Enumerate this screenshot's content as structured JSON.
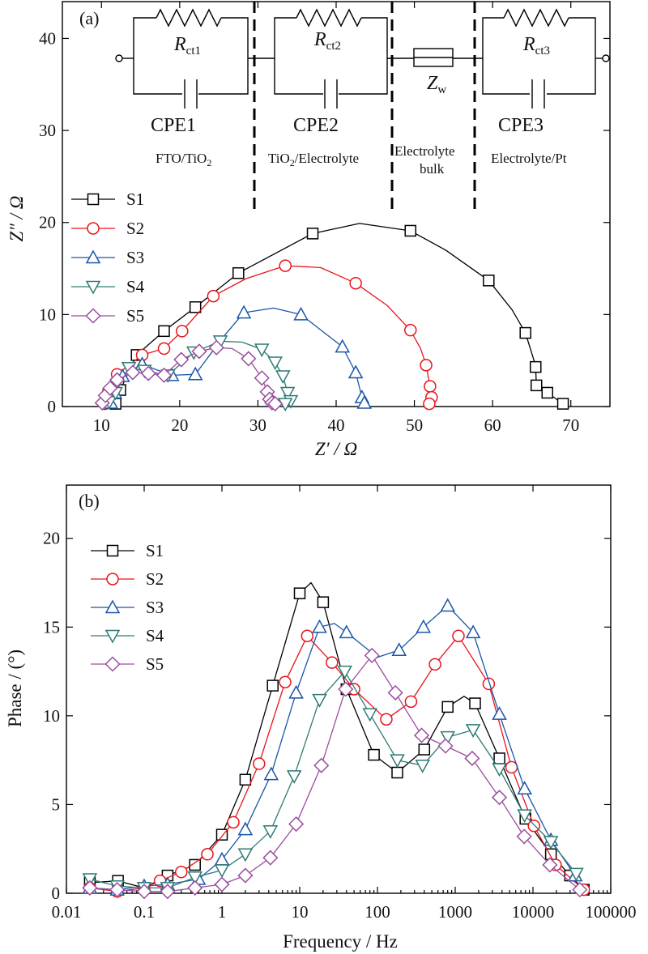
{
  "chart_data": [
    {
      "panel": "(a)",
      "type": "scatter",
      "xlabel": "Z′ / Ω",
      "ylabel": "Z″ / Ω",
      "xlim": [
        5,
        75
      ],
      "ylim": [
        0,
        44
      ],
      "xticks": [
        "10",
        "20",
        "30",
        "40",
        "50",
        "60",
        "70"
      ],
      "yticks": [
        "0",
        "10",
        "20",
        "30",
        "40"
      ],
      "xtick_values": [
        10,
        20,
        30,
        40,
        50,
        60,
        70
      ],
      "ytick_values": [
        0,
        10,
        20,
        30,
        40
      ],
      "legend_position": "left",
      "series": [
        {
          "name": "S1",
          "color": "#000000",
          "marker": "square",
          "x": [
            11.8,
            12.4,
            14.5,
            18,
            22,
            27.5,
            37,
            43,
            49.5,
            54,
            59.5,
            62.5,
            64.2,
            65.3,
            65.5,
            65.6,
            67,
            69
          ],
          "y": [
            0.3,
            1.8,
            5.6,
            8.2,
            10.8,
            14.5,
            18.8,
            19.9,
            19.1,
            17,
            13.7,
            10.5,
            8,
            5,
            4.3,
            2.3,
            1.5,
            0.3
          ],
          "marked": [
            true,
            true,
            true,
            true,
            true,
            true,
            true,
            false,
            true,
            false,
            true,
            false,
            true,
            false,
            true,
            true,
            true,
            true
          ]
        },
        {
          "name": "S2",
          "color": "#e8141c",
          "marker": "circle",
          "x": [
            10.4,
            10.9,
            12,
            15.2,
            18,
            20.3,
            24.3,
            28.5,
            33.5,
            38,
            42.5,
            46.5,
            49.5,
            50.8,
            51.5,
            52,
            52.2,
            51.9
          ],
          "y": [
            0.3,
            1.7,
            3.5,
            5.6,
            6.3,
            8.2,
            12,
            13.9,
            15.3,
            15.1,
            13.4,
            11,
            8.3,
            6.3,
            4.5,
            2.2,
            1,
            0.3
          ],
          "marked": [
            true,
            true,
            true,
            true,
            true,
            true,
            true,
            false,
            true,
            false,
            true,
            false,
            true,
            false,
            true,
            true,
            true,
            true
          ]
        },
        {
          "name": "S3",
          "color": "#1a55a8",
          "marker": "triangle-up",
          "x": [
            11.2,
            11.7,
            12.7,
            15.2,
            17,
            19,
            22,
            25.5,
            28.2,
            32,
            35.5,
            40.8,
            42.5,
            43.3,
            43.6
          ],
          "y": [
            0.4,
            1.5,
            3.3,
            4.6,
            4,
            3.4,
            3.5,
            7.5,
            10.2,
            10.7,
            10,
            6.5,
            3.7,
            1,
            0.4
          ],
          "marked": [
            true,
            true,
            true,
            true,
            false,
            true,
            true,
            false,
            true,
            false,
            true,
            true,
            true,
            true,
            true
          ]
        },
        {
          "name": "S4",
          "color": "#2e7a74",
          "marker": "triangle-down",
          "x": [
            11,
            11.8,
            13.5,
            15.5,
            18.5,
            21.8,
            25.2,
            28,
            30.5,
            32.2,
            33.2,
            33.8,
            34.2,
            33.5
          ],
          "y": [
            0.5,
            1.5,
            4.2,
            3.9,
            3.4,
            5.9,
            7.1,
            7,
            6.2,
            4.8,
            3.3,
            1.5,
            0.6,
            0.3
          ],
          "marked": [
            true,
            true,
            true,
            true,
            true,
            true,
            true,
            false,
            true,
            true,
            true,
            true,
            true,
            true
          ]
        },
        {
          "name": "S5",
          "color": "#9b4d9e",
          "marker": "diamond",
          "x": [
            10.1,
            10.5,
            11.1,
            12,
            14,
            16,
            18,
            20.2,
            22.5,
            24.7,
            26.7,
            28.8,
            30.5,
            31.2,
            31.5,
            31.8,
            32.2
          ],
          "y": [
            0.4,
            1.2,
            2,
            2.9,
            3.7,
            3.6,
            3.4,
            5.1,
            6,
            6.4,
            6.3,
            5.2,
            3.1,
            1.6,
            0.8,
            0.4,
            0.3
          ],
          "marked": [
            true,
            true,
            true,
            true,
            true,
            true,
            true,
            true,
            true,
            true,
            false,
            true,
            true,
            true,
            true,
            true,
            true
          ]
        }
      ]
    },
    {
      "panel": "(b)",
      "type": "line",
      "xlabel": "Frequency / Hz",
      "ylabel": "Phase / (°)",
      "xscale": "log",
      "xlim": [
        0.01,
        100000
      ],
      "ylim": [
        0,
        23
      ],
      "xticks": [
        "0.01",
        "0.1",
        "1",
        "10",
        "100",
        "1000",
        "10000",
        "100000"
      ],
      "yticks": [
        "0",
        "5",
        "10",
        "15",
        "20"
      ],
      "xtick_values": [
        0.01,
        0.1,
        1,
        10,
        100,
        1000,
        10000,
        100000
      ],
      "ytick_values": [
        0,
        5,
        10,
        15,
        20
      ],
      "legend_position": "top-left",
      "series": [
        {
          "name": "S1",
          "color": "#000000",
          "marker": "square",
          "x": [
            0.02,
            0.046,
            0.1,
            0.2,
            0.45,
            1,
            2,
            4.5,
            10,
            14,
            20,
            40,
            90,
            180,
            400,
            800,
            1300,
            1800,
            3700,
            8000,
            17000,
            30000,
            45000
          ],
          "y": [
            0.6,
            0.7,
            0.3,
            1,
            1.6,
            3.3,
            6.4,
            11.7,
            16.9,
            17.5,
            16.4,
            11.5,
            7.8,
            6.8,
            8.1,
            10.5,
            11.1,
            10.7,
            7.6,
            4.2,
            2.2,
            1,
            0.2
          ],
          "marked": [
            true,
            true,
            true,
            true,
            true,
            true,
            true,
            true,
            true,
            false,
            true,
            true,
            true,
            true,
            true,
            true,
            false,
            true,
            true,
            true,
            true,
            true,
            true
          ]
        },
        {
          "name": "S2",
          "color": "#e8141c",
          "marker": "circle",
          "x": [
            0.02,
            0.045,
            0.1,
            0.16,
            0.3,
            0.65,
            1.4,
            3,
            6.5,
            12.5,
            26,
            50,
            130,
            270,
            550,
            1100,
            2700,
            5300,
            10300,
            19500,
            45000
          ],
          "y": [
            0.3,
            0.1,
            0.3,
            0.7,
            1.2,
            2.2,
            4,
            7.3,
            11.9,
            14.5,
            13,
            11.5,
            9.8,
            10.8,
            12.9,
            14.5,
            11.8,
            7.1,
            3.8,
            1.6,
            0.2
          ],
          "marked": [
            true,
            true,
            true,
            true,
            true,
            true,
            true,
            true,
            true,
            true,
            true,
            true,
            true,
            true,
            true,
            true,
            true,
            true,
            true,
            true,
            true
          ]
        },
        {
          "name": "S3",
          "color": "#1a55a8",
          "marker": "triangle-up",
          "x": [
            0.02,
            0.045,
            0.1,
            0.2,
            0.5,
            1,
            2,
            4.3,
            9,
            18,
            28,
            40,
            100,
            190,
            390,
            800,
            1700,
            3700,
            7800,
            17000,
            35000
          ],
          "y": [
            0.3,
            0.2,
            0.4,
            0.5,
            0.8,
            1.9,
            3.6,
            6.7,
            11.3,
            15,
            15.2,
            14.7,
            13.3,
            13.7,
            15,
            16.2,
            14.7,
            10.1,
            5.9,
            3,
            1
          ],
          "marked": [
            true,
            true,
            true,
            true,
            true,
            true,
            true,
            true,
            true,
            true,
            false,
            true,
            false,
            true,
            true,
            true,
            true,
            true,
            true,
            true,
            true
          ]
        },
        {
          "name": "S4",
          "color": "#2e7a74",
          "marker": "triangle-down",
          "x": [
            0.02,
            0.045,
            0.1,
            0.2,
            0.45,
            1,
            2,
            4.2,
            8.5,
            18,
            38,
            80,
            180,
            380,
            800,
            1700,
            3700,
            7800,
            17000,
            36000
          ],
          "y": [
            0.8,
            0.4,
            0.3,
            0.3,
            0.9,
            1.3,
            2.2,
            3.5,
            6.6,
            10.9,
            12.5,
            10.1,
            7.5,
            7.2,
            8.8,
            9.2,
            7,
            4.4,
            2.9,
            1.1
          ],
          "marked": [
            true,
            true,
            true,
            true,
            true,
            true,
            true,
            true,
            true,
            true,
            true,
            true,
            true,
            true,
            true,
            true,
            true,
            true,
            true,
            true
          ]
        },
        {
          "name": "S5",
          "color": "#9b4d9e",
          "marker": "diamond",
          "x": [
            0.02,
            0.045,
            0.1,
            0.2,
            0.45,
            1,
            2,
            4.2,
            9,
            19,
            39,
            85,
            170,
            370,
            750,
            1650,
            3700,
            7700,
            16500,
            40000
          ],
          "y": [
            0.3,
            0.2,
            0.1,
            0.1,
            0.3,
            0.5,
            1,
            2,
            3.9,
            7.2,
            11.5,
            13.4,
            11.3,
            8.9,
            8.3,
            7.6,
            5.4,
            3.2,
            1.6,
            0.2
          ],
          "marked": [
            true,
            true,
            true,
            true,
            true,
            true,
            true,
            true,
            true,
            true,
            true,
            true,
            true,
            true,
            true,
            true,
            true,
            true,
            true,
            true
          ]
        }
      ]
    }
  ],
  "circuit": {
    "resistors": [
      "R",
      "R",
      "R"
    ],
    "resistor_subs": [
      "ct1",
      "ct2",
      "ct3"
    ],
    "warburg": "Z",
    "warburg_sub": "w",
    "cpes": [
      "CPE1",
      "CPE2",
      "CPE3"
    ],
    "interfaces": [
      "FTO/TiO",
      "TiO",
      "Electrolyte",
      "Electrolyte/Pt"
    ],
    "interface_subs": [
      "2",
      "2"
    ],
    "interface_tails": [
      "",
      "/Electrolyte"
    ],
    "bulk_label_line1": "Electrolyte",
    "bulk_label_line2": "bulk"
  }
}
